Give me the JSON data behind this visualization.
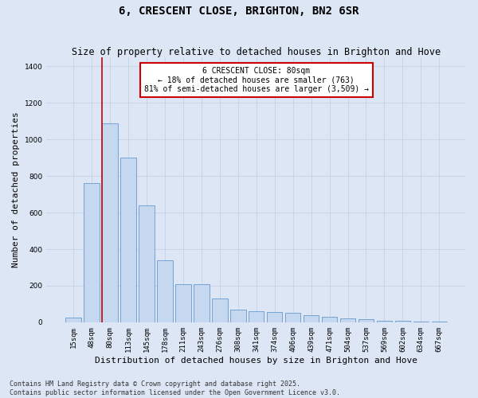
{
  "title": "6, CRESCENT CLOSE, BRIGHTON, BN2 6SR",
  "subtitle": "Size of property relative to detached houses in Brighton and Hove",
  "xlabel": "Distribution of detached houses by size in Brighton and Hove",
  "ylabel": "Number of detached properties",
  "categories": [
    "15sqm",
    "48sqm",
    "80sqm",
    "113sqm",
    "145sqm",
    "178sqm",
    "211sqm",
    "243sqm",
    "276sqm",
    "308sqm",
    "341sqm",
    "374sqm",
    "406sqm",
    "439sqm",
    "471sqm",
    "504sqm",
    "537sqm",
    "569sqm",
    "602sqm",
    "634sqm",
    "667sqm"
  ],
  "values": [
    25,
    760,
    1090,
    900,
    640,
    340,
    210,
    210,
    130,
    70,
    60,
    55,
    50,
    40,
    30,
    20,
    15,
    10,
    10,
    5,
    5
  ],
  "bar_color": "#c5d8ef",
  "bar_edge_color": "#6699cc",
  "highlight_index": 2,
  "highlight_line_color": "#cc0000",
  "annotation_text": "6 CRESCENT CLOSE: 80sqm\n← 18% of detached houses are smaller (763)\n81% of semi-detached houses are larger (3,509) →",
  "annotation_box_color": "#cc0000",
  "annotation_bg": "#ffffff",
  "ylim": [
    0,
    1450
  ],
  "yticks": [
    0,
    200,
    400,
    600,
    800,
    1000,
    1200,
    1400
  ],
  "grid_color": "#c8d4e8",
  "background_color": "#dce6f5",
  "footer_line1": "Contains HM Land Registry data © Crown copyright and database right 2025.",
  "footer_line2": "Contains public sector information licensed under the Open Government Licence v3.0.",
  "title_fontsize": 10,
  "subtitle_fontsize": 8.5,
  "xlabel_fontsize": 8,
  "ylabel_fontsize": 8,
  "tick_fontsize": 6.5,
  "annotation_fontsize": 7,
  "footer_fontsize": 6
}
